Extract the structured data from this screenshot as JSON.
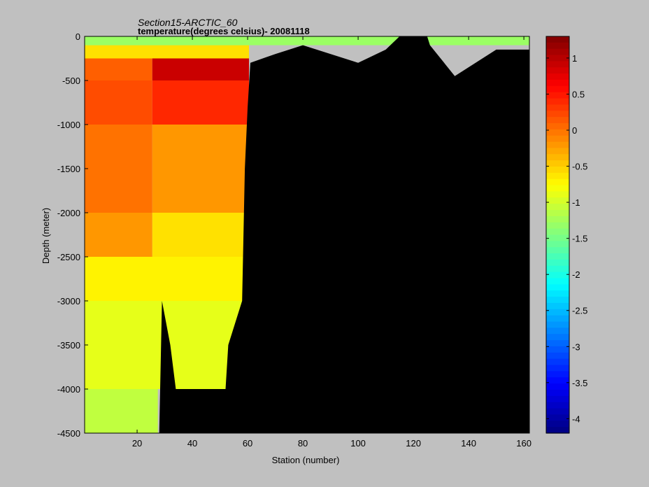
{
  "chart_data": {
    "type": "heatmap",
    "title": "Section15-ARCTIC_60",
    "subtitle": "temperature(degrees  celsius)- 20081118",
    "xlabel": "Station (number)",
    "ylabel": "Depth (meter)",
    "xlim": [
      1,
      162
    ],
    "ylim": [
      -4500,
      0
    ],
    "xticks": [
      20,
      40,
      60,
      80,
      100,
      120,
      140,
      160
    ],
    "yticks": [
      0,
      -500,
      -1000,
      -1500,
      -2000,
      -2500,
      -3000,
      -3500,
      -4000,
      -4500
    ],
    "colorbar": {
      "range": [
        -4.2,
        1.3
      ],
      "ticks": [
        1,
        0.5,
        0,
        -0.5,
        -1,
        -1.5,
        -2,
        -2.5,
        -3,
        -3.5,
        -4
      ],
      "colormap": "jet"
    },
    "land_color": "#000000",
    "depth_layers": [
      {
        "top": 0,
        "bottom": -100,
        "stations_1_60": -1.3
      },
      {
        "top": -100,
        "bottom": -250,
        "stations_1_60": -0.6
      },
      {
        "top": -250,
        "bottom": -500,
        "stations_1_25": 0.1,
        "stations_26_60": 0.9
      },
      {
        "top": -500,
        "bottom": -1000,
        "stations_1_25": 0.2,
        "stations_26_60": 0.4
      },
      {
        "top": -1000,
        "bottom": -2000,
        "stations_1_25": 0.0,
        "stations_26_60": -0.2
      },
      {
        "top": -2000,
        "bottom": -2500,
        "stations_1_25": -0.2,
        "stations_26_60": -0.6
      },
      {
        "top": -2500,
        "bottom": -3000,
        "stations_1_60": -0.7
      },
      {
        "top": -3000,
        "bottom": -4000,
        "stations_1_60": -0.9
      },
      {
        "top": -4000,
        "bottom": -4500,
        "stations_1_27": -1.1
      }
    ],
    "seafloor_depth": [
      {
        "station": 1,
        "depth": -4500
      },
      {
        "station": 28,
        "depth": -4500
      },
      {
        "station": 29,
        "depth": -3000
      },
      {
        "station": 32,
        "depth": -3500
      },
      {
        "station": 34,
        "depth": -4000
      },
      {
        "station": 52,
        "depth": -4000
      },
      {
        "station": 53,
        "depth": -3500
      },
      {
        "station": 58,
        "depth": -3000
      },
      {
        "station": 59,
        "depth": -1500
      },
      {
        "station": 60,
        "depth": -800
      },
      {
        "station": 61,
        "depth": -300
      },
      {
        "station": 70,
        "depth": -200
      },
      {
        "station": 80,
        "depth": -100
      },
      {
        "station": 100,
        "depth": -300
      },
      {
        "station": 110,
        "depth": -150
      },
      {
        "station": 115,
        "depth": 0
      },
      {
        "station": 125,
        "depth": 0
      },
      {
        "station": 126,
        "depth": -100
      },
      {
        "station": 135,
        "depth": -450
      },
      {
        "station": 150,
        "depth": -150
      },
      {
        "station": 162,
        "depth": -150
      }
    ]
  }
}
